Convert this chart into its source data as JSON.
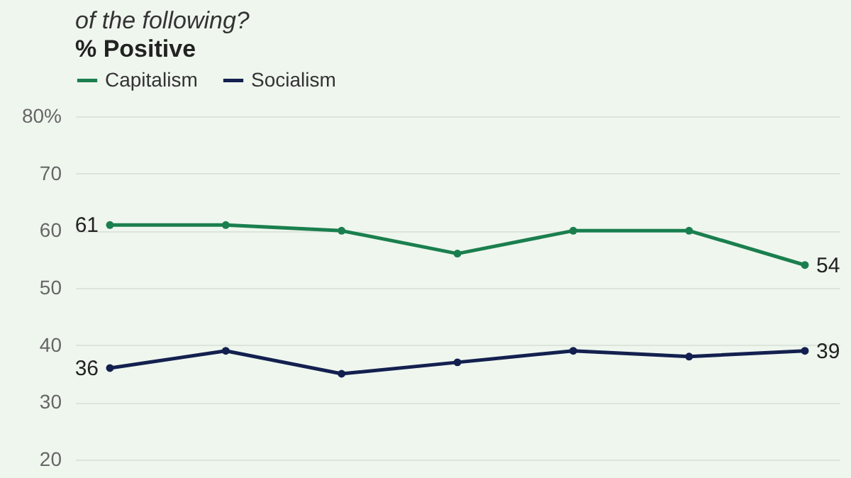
{
  "chart_data": {
    "type": "line",
    "title": "of the following?",
    "subtitle": "% Positive",
    "categories": [
      null,
      null,
      null,
      null,
      null,
      null,
      null
    ],
    "series": [
      {
        "name": "Capitalism",
        "color": "#1a7f4e",
        "values": [
          61,
          61,
          60,
          56,
          60,
          60,
          54
        ],
        "value_labels": [
          "61",
          null,
          null,
          null,
          null,
          null,
          "54"
        ]
      },
      {
        "name": "Socialism",
        "color": "#13204f",
        "values": [
          36,
          39,
          35,
          37,
          39,
          38,
          39
        ],
        "value_labels": [
          "36",
          null,
          null,
          null,
          null,
          null,
          "39"
        ]
      }
    ],
    "ylim": [
      20,
      80
    ],
    "yticks": [
      20,
      30,
      40,
      50,
      60,
      70,
      {
        "value": 80,
        "label": "80%"
      }
    ],
    "grid": "y",
    "legend": "top left",
    "marker": "circle",
    "line_style": "solid",
    "tick_labels": "y"
  }
}
